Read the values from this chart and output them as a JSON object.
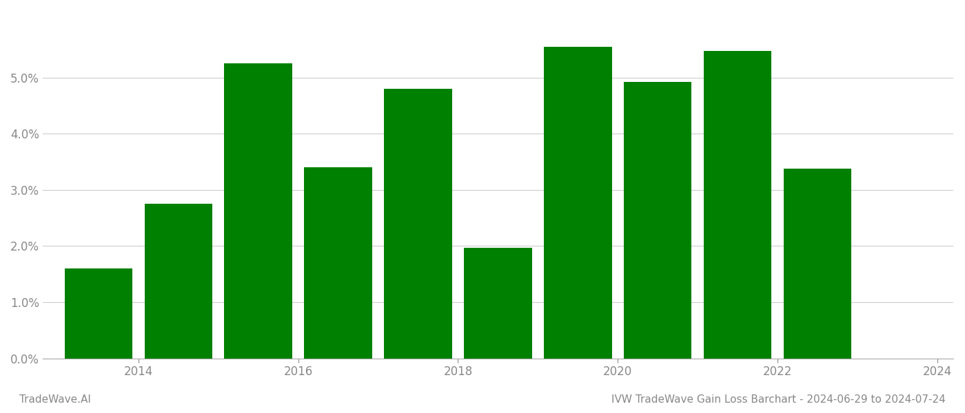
{
  "years": [
    2014,
    2015,
    2016,
    2017,
    2018,
    2019,
    2020,
    2021,
    2022,
    2023
  ],
  "values": [
    0.016,
    0.0275,
    0.0525,
    0.034,
    0.048,
    0.0197,
    0.0555,
    0.0493,
    0.0548,
    0.0338
  ],
  "bar_color": "#008000",
  "background_color": "#ffffff",
  "title": "IVW TradeWave Gain Loss Barchart - 2024-06-29 to 2024-07-24",
  "watermark": "TradeWave.AI",
  "ylim": [
    0,
    0.062
  ],
  "ytick_values": [
    0.0,
    0.01,
    0.02,
    0.03,
    0.04,
    0.05
  ],
  "grid_color": "#cccccc",
  "axis_label_color": "#888888",
  "title_color": "#888888",
  "watermark_color": "#888888",
  "title_fontsize": 11,
  "watermark_fontsize": 11,
  "tick_fontsize": 12,
  "bar_width": 0.85
}
